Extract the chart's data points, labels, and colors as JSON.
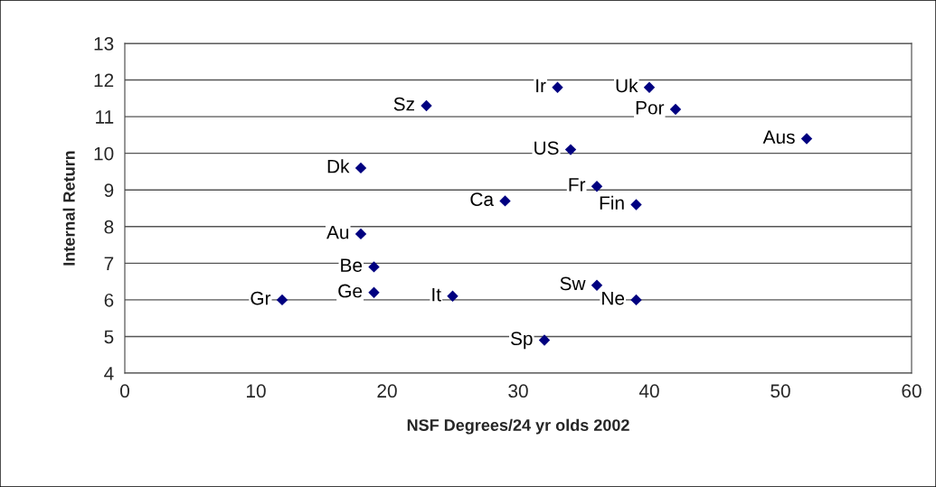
{
  "chart_data": {
    "type": "scatter",
    "xlabel": "NSF Degrees/24 yr olds 2002",
    "ylabel": "Internal Return",
    "x": [
      33,
      40,
      23,
      42,
      52,
      34,
      18,
      36,
      29,
      39,
      18,
      19,
      12,
      19,
      25,
      36,
      39,
      32
    ],
    "series": [
      {
        "color": "#000080",
        "values": [
          11.8,
          11.8,
          11.3,
          11.2,
          10.4,
          10.1,
          9.6,
          9.1,
          8.7,
          8.6,
          7.8,
          6.9,
          6.0,
          6.2,
          6.1,
          6.4,
          6.0,
          4.9
        ]
      }
    ],
    "annotations": [
      {
        "text": "Ir",
        "x": 33,
        "y": 11.8
      },
      {
        "text": "Uk",
        "x": 40,
        "y": 11.8
      },
      {
        "text": "Sz",
        "x": 23,
        "y": 11.3
      },
      {
        "text": "Por",
        "x": 42,
        "y": 11.2
      },
      {
        "text": "Aus",
        "x": 52,
        "y": 10.4
      },
      {
        "text": "US",
        "x": 34,
        "y": 10.1
      },
      {
        "text": "Dk",
        "x": 18,
        "y": 9.6
      },
      {
        "text": "Fr",
        "x": 36,
        "y": 9.1
      },
      {
        "text": "Ca",
        "x": 29,
        "y": 8.7
      },
      {
        "text": "Fin",
        "x": 39,
        "y": 8.6
      },
      {
        "text": "Au",
        "x": 18,
        "y": 7.8
      },
      {
        "text": "Be",
        "x": 19,
        "y": 6.9
      },
      {
        "text": "Gr",
        "x": 12,
        "y": 6.0
      },
      {
        "text": "Ge",
        "x": 19,
        "y": 6.2
      },
      {
        "text": "It",
        "x": 25,
        "y": 6.1
      },
      {
        "text": "Sw",
        "x": 36,
        "y": 6.4
      },
      {
        "text": "Ne",
        "x": 39,
        "y": 6.0
      },
      {
        "text": "Sp",
        "x": 32,
        "y": 4.9
      }
    ],
    "xlim": [
      0,
      60
    ],
    "xticks": [
      0,
      10,
      20,
      30,
      40,
      50,
      60
    ],
    "ylim": [
      4,
      13
    ],
    "yticks": [
      4,
      5,
      6,
      7,
      8,
      9,
      10,
      11,
      12,
      13
    ],
    "grid": "y",
    "marker": "diamond"
  }
}
